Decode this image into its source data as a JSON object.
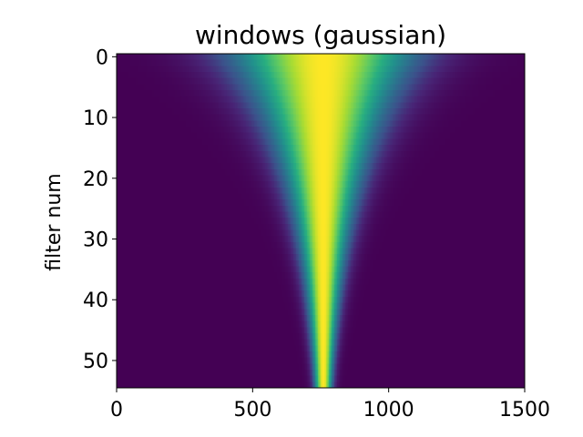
{
  "chart_data": {
    "type": "heatmap",
    "title": "windows (gaussian)",
    "xlabel": "",
    "ylabel": "filter num",
    "xlim": [
      0,
      1500
    ],
    "ylim": [
      54.5,
      -0.5
    ],
    "xticks": [
      "0",
      "500",
      "1000",
      "1500"
    ],
    "yticks": [
      "0",
      "10",
      "20",
      "30",
      "40",
      "50"
    ],
    "colormap": "viridis",
    "grid": false,
    "legend": "none",
    "window_center": 760,
    "filter_count": 55,
    "sigma_first": 230,
    "sigma_last": 22,
    "value_range": [
      0,
      1
    ]
  }
}
